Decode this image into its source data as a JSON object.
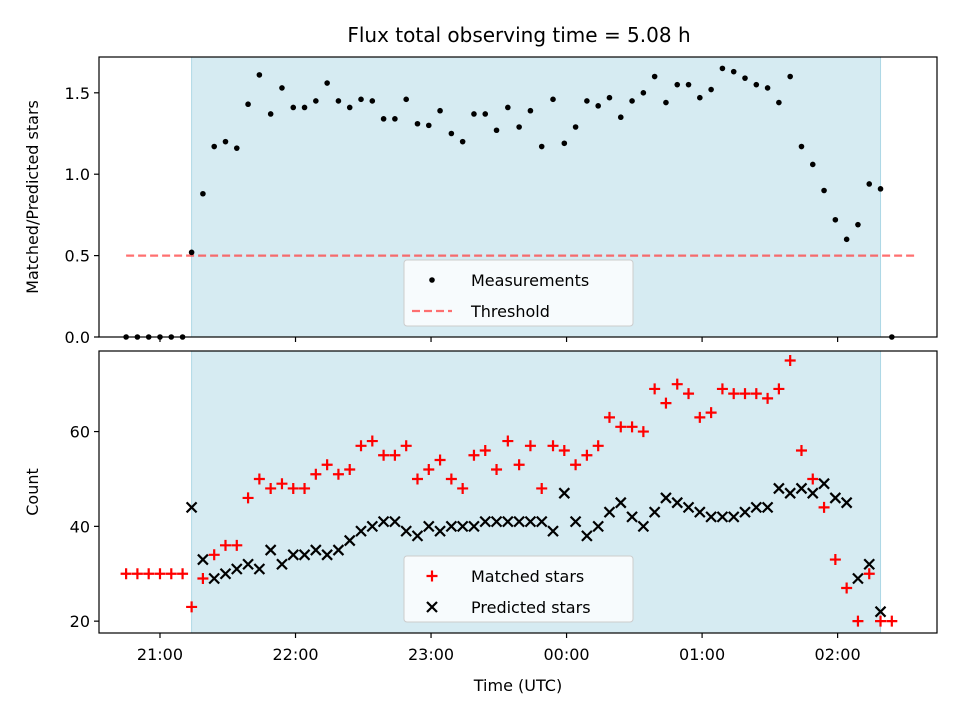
{
  "title": "Flux total observing time = 5.08 h",
  "colors": {
    "shade": "#add8e6",
    "measurement": "#000000",
    "threshold": "#ff4040",
    "matched": "#ff0000",
    "predicted": "#000000"
  },
  "chart_data": [
    {
      "type": "scatter",
      "ylabel": "Matched/Predicted stars",
      "ylim": [
        0,
        1.72
      ],
      "yticks": [
        0,
        0.5,
        1.0,
        1.5
      ],
      "ytick_labels": [
        "0.0",
        "0.5",
        "1.0",
        "1.5"
      ],
      "xlim": [
        "20:33",
        "02:44"
      ],
      "shaded_span": [
        "21:14",
        "02:19"
      ],
      "legend": {
        "placement": "lower-center",
        "entries": [
          "Measurements",
          "Threshold"
        ]
      },
      "threshold": {
        "name": "Threshold",
        "value": 0.5,
        "x_start": "20:45",
        "x_end": "02:35",
        "style": "dashed"
      },
      "series": [
        {
          "name": "Measurements",
          "marker": "dot",
          "x": [
            "20:45",
            "20:50",
            "20:55",
            "21:00",
            "21:05",
            "21:10",
            "21:14",
            "21:19",
            "21:24",
            "21:29",
            "21:34",
            "21:39",
            "21:44",
            "21:49",
            "21:54",
            "21:59",
            "22:04",
            "22:09",
            "22:14",
            "22:19",
            "22:24",
            "22:29",
            "22:34",
            "22:39",
            "22:44",
            "22:49",
            "22:54",
            "22:59",
            "23:04",
            "23:09",
            "23:14",
            "23:19",
            "23:24",
            "23:29",
            "23:34",
            "23:39",
            "23:44",
            "23:49",
            "23:54",
            "23:59",
            "00:04",
            "00:09",
            "00:14",
            "00:19",
            "00:24",
            "00:29",
            "00:34",
            "00:39",
            "00:44",
            "00:49",
            "00:54",
            "00:59",
            "01:04",
            "01:09",
            "01:14",
            "01:19",
            "01:24",
            "01:29",
            "01:34",
            "01:39",
            "01:44",
            "01:49",
            "01:54",
            "01:59",
            "02:04",
            "02:09",
            "02:14",
            "02:19",
            "02:24"
          ],
          "y": [
            0,
            0,
            0,
            0,
            0,
            0,
            0.52,
            0.88,
            1.17,
            1.2,
            1.16,
            1.43,
            1.61,
            1.37,
            1.53,
            1.41,
            1.41,
            1.45,
            1.56,
            1.45,
            1.41,
            1.46,
            1.45,
            1.34,
            1.34,
            1.46,
            1.31,
            1.3,
            1.39,
            1.25,
            1.2,
            1.37,
            1.37,
            1.27,
            1.41,
            1.29,
            1.39,
            1.17,
            1.46,
            1.19,
            1.29,
            1.45,
            1.42,
            1.47,
            1.35,
            1.45,
            1.5,
            1.6,
            1.44,
            1.55,
            1.55,
            1.47,
            1.52,
            1.65,
            1.63,
            1.59,
            1.55,
            1.53,
            1.44,
            1.6,
            1.17,
            1.06,
            0.9,
            0.72,
            0.6,
            0.69,
            0.94,
            0.91,
            0
          ]
        }
      ]
    },
    {
      "type": "scatter",
      "xlabel": "Time (UTC)",
      "ylabel": "Count",
      "ylim": [
        17.5,
        77
      ],
      "yticks": [
        20,
        40,
        60
      ],
      "ytick_labels": [
        "20",
        "40",
        "60"
      ],
      "xlim": [
        "20:33",
        "02:44"
      ],
      "xticks": [
        "21:00",
        "22:00",
        "23:00",
        "00:00",
        "01:00",
        "02:00"
      ],
      "shaded_span": [
        "21:14",
        "02:19"
      ],
      "legend": {
        "placement": "lower-center",
        "entries": [
          "Matched stars",
          "Predicted stars"
        ]
      },
      "series": [
        {
          "name": "Matched stars",
          "marker": "plus",
          "x": [
            "20:45",
            "20:50",
            "20:55",
            "21:00",
            "21:05",
            "21:10",
            "21:14",
            "21:19",
            "21:24",
            "21:29",
            "21:34",
            "21:39",
            "21:44",
            "21:49",
            "21:54",
            "21:59",
            "22:04",
            "22:09",
            "22:14",
            "22:19",
            "22:24",
            "22:29",
            "22:34",
            "22:39",
            "22:44",
            "22:49",
            "22:54",
            "22:59",
            "23:04",
            "23:09",
            "23:14",
            "23:19",
            "23:24",
            "23:29",
            "23:34",
            "23:39",
            "23:44",
            "23:49",
            "23:54",
            "23:59",
            "00:04",
            "00:09",
            "00:14",
            "00:19",
            "00:24",
            "00:29",
            "00:34",
            "00:39",
            "00:44",
            "00:49",
            "00:54",
            "00:59",
            "01:04",
            "01:09",
            "01:14",
            "01:19",
            "01:24",
            "01:29",
            "01:34",
            "01:39",
            "01:44",
            "01:49",
            "01:54",
            "01:59",
            "02:04",
            "02:09",
            "02:14",
            "02:19",
            "02:24"
          ],
          "y": [
            30,
            30,
            30,
            30,
            30,
            30,
            23,
            29,
            34,
            36,
            36,
            46,
            50,
            48,
            49,
            48,
            48,
            51,
            53,
            51,
            52,
            57,
            58,
            55,
            55,
            57,
            50,
            52,
            54,
            50,
            48,
            55,
            56,
            52,
            58,
            53,
            57,
            48,
            57,
            56,
            53,
            55,
            57,
            63,
            61,
            61,
            60,
            69,
            66,
            70,
            68,
            63,
            64,
            69,
            68,
            68,
            68,
            67,
            69,
            75,
            56,
            50,
            44,
            33,
            27,
            20,
            30,
            20,
            20
          ]
        },
        {
          "name": "Predicted stars",
          "marker": "x",
          "x": [
            "21:14",
            "21:19",
            "21:24",
            "21:29",
            "21:34",
            "21:39",
            "21:44",
            "21:49",
            "21:54",
            "21:59",
            "22:04",
            "22:09",
            "22:14",
            "22:19",
            "22:24",
            "22:29",
            "22:34",
            "22:39",
            "22:44",
            "22:49",
            "22:54",
            "22:59",
            "23:04",
            "23:09",
            "23:14",
            "23:19",
            "23:24",
            "23:29",
            "23:34",
            "23:39",
            "23:44",
            "23:49",
            "23:54",
            "23:59",
            "00:04",
            "00:09",
            "00:14",
            "00:19",
            "00:24",
            "00:29",
            "00:34",
            "00:39",
            "00:44",
            "00:49",
            "00:54",
            "00:59",
            "01:04",
            "01:09",
            "01:14",
            "01:19",
            "01:24",
            "01:29",
            "01:34",
            "01:39",
            "01:44",
            "01:49",
            "01:54",
            "01:59",
            "02:04",
            "02:09",
            "02:14",
            "02:19"
          ],
          "y": [
            44,
            33,
            29,
            30,
            31,
            32,
            31,
            35,
            32,
            34,
            34,
            35,
            34,
            35,
            37,
            39,
            40,
            41,
            41,
            39,
            38,
            40,
            39,
            40,
            40,
            40,
            41,
            41,
            41,
            41,
            41,
            41,
            39,
            47,
            41,
            38,
            40,
            43,
            45,
            42,
            40,
            43,
            46,
            45,
            44,
            43,
            42,
            42,
            42,
            43,
            44,
            44,
            48,
            47,
            48,
            47,
            49,
            46,
            45,
            29,
            32,
            22
          ]
        }
      ]
    }
  ]
}
